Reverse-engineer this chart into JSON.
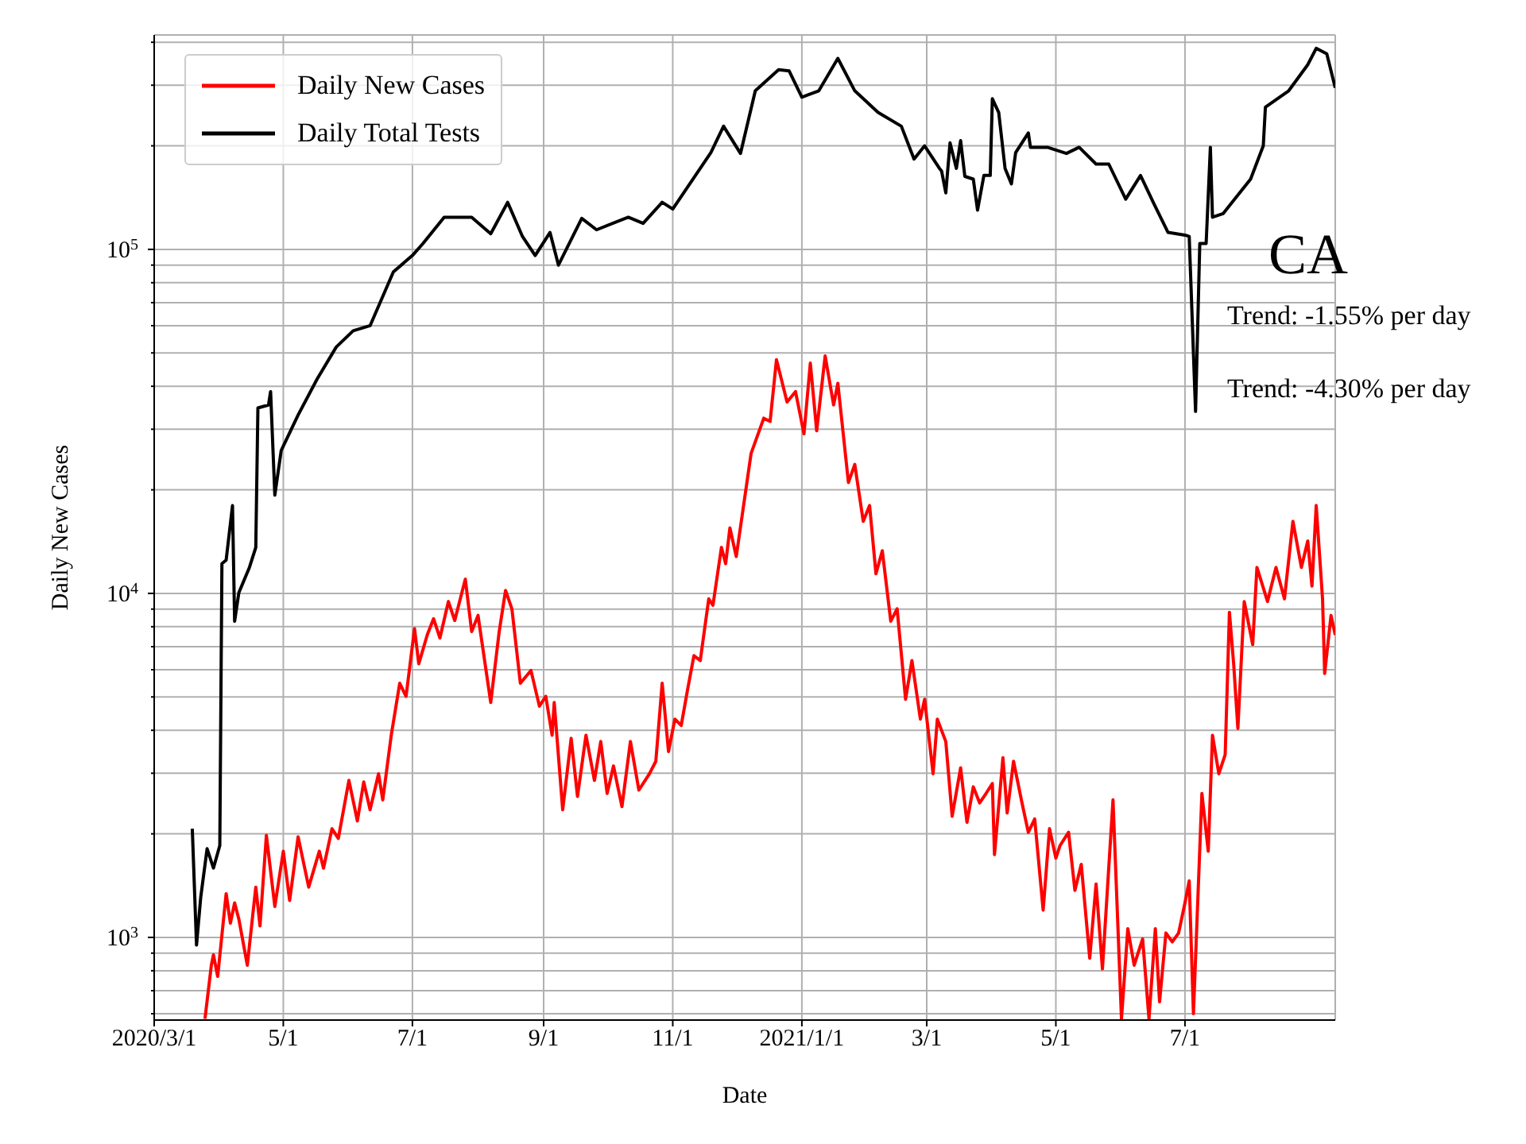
{
  "chart_data": {
    "type": "line",
    "xlabel": "Date",
    "ylabel": "Daily New Cases",
    "log": "y",
    "grid": true,
    "legend": "top left",
    "marker": "none",
    "line_style": "solid",
    "xlim": [
      "2020-03-01",
      "2021-09-10"
    ],
    "xticks": [
      {
        "value": "2020-03-01",
        "label": "2020/3/1"
      },
      {
        "value": "2020-05-01",
        "label": "5/1"
      },
      {
        "value": "2020-07-01",
        "label": "7/1"
      },
      {
        "value": "2020-09-01",
        "label": "9/1"
      },
      {
        "value": "2020-11-01",
        "label": "11/1"
      },
      {
        "value": "2021-01-01",
        "label": "2021/1/1"
      },
      {
        "value": "2021-03-01",
        "label": "3/1"
      },
      {
        "value": "2021-05-01",
        "label": "5/1"
      },
      {
        "value": "2021-07-01",
        "label": "7/1"
      }
    ],
    "ylim": [
      575,
      420000
    ],
    "yticks": [
      {
        "value": 600,
        "label": null
      },
      {
        "value": 700,
        "label": null
      },
      {
        "value": 800,
        "label": null
      },
      {
        "value": 900,
        "label": null
      },
      {
        "value": 1000,
        "label": "10$^{3}$"
      },
      {
        "value": 2000,
        "label": null
      },
      {
        "value": 3000,
        "label": null
      },
      {
        "value": 4000,
        "label": null
      },
      {
        "value": 5000,
        "label": null
      },
      {
        "value": 6000,
        "label": null
      },
      {
        "value": 7000,
        "label": null
      },
      {
        "value": 8000,
        "label": null
      },
      {
        "value": 9000,
        "label": null
      },
      {
        "value": 10000,
        "label": "10$^{4}$"
      },
      {
        "value": 20000,
        "label": null
      },
      {
        "value": 30000,
        "label": null
      },
      {
        "value": 40000,
        "label": null
      },
      {
        "value": 50000,
        "label": null
      },
      {
        "value": 60000,
        "label": null
      },
      {
        "value": 70000,
        "label": null
      },
      {
        "value": 80000,
        "label": null
      },
      {
        "value": 90000,
        "label": null
      },
      {
        "value": 100000,
        "label": "10$^{5}$"
      },
      {
        "value": 200000,
        "label": null
      },
      {
        "value": 300000,
        "label": null
      },
      {
        "value": 400000,
        "label": null
      }
    ],
    "annotations": [
      "CA",
      "Trend: -1.55% per day",
      "Trend: -4.30% per day"
    ],
    "series": [
      {
        "name": "Daily New Cases",
        "color": "#ff0000",
        "x": [
          "2020-03-25",
          "2020-03-28",
          "2020-03-29",
          "2020-03-31",
          "2020-04-04",
          "2020-04-06",
          "2020-04-08",
          "2020-04-10",
          "2020-04-14",
          "2020-04-18",
          "2020-04-20",
          "2020-04-23",
          "2020-04-27",
          "2020-05-01",
          "2020-05-04",
          "2020-05-08",
          "2020-05-13",
          "2020-05-18",
          "2020-05-20",
          "2020-05-24",
          "2020-05-27",
          "2020-06-01",
          "2020-06-05",
          "2020-06-08",
          "2020-06-11",
          "2020-06-15",
          "2020-06-17",
          "2020-06-21",
          "2020-06-25",
          "2020-06-28",
          "2020-07-02",
          "2020-07-04",
          "2020-07-08",
          "2020-07-11",
          "2020-07-14",
          "2020-07-18",
          "2020-07-21",
          "2020-07-26",
          "2020-07-29",
          "2020-08-01",
          "2020-08-07",
          "2020-08-11",
          "2020-08-14",
          "2020-08-17",
          "2020-08-21",
          "2020-08-26",
          "2020-08-30",
          "2020-09-02",
          "2020-09-05",
          "2020-09-06",
          "2020-09-10",
          "2020-09-14",
          "2020-09-17",
          "2020-09-21",
          "2020-09-25",
          "2020-09-28",
          "2020-10-01",
          "2020-10-04",
          "2020-10-08",
          "2020-10-12",
          "2020-10-16",
          "2020-10-21",
          "2020-10-24",
          "2020-10-27",
          "2020-10-30",
          "2020-11-02",
          "2020-11-05",
          "2020-11-08",
          "2020-11-11",
          "2020-11-14",
          "2020-11-18",
          "2020-11-20",
          "2020-11-24",
          "2020-11-26",
          "2020-11-28",
          "2020-12-01",
          "2020-12-08",
          "2020-12-14",
          "2020-12-17",
          "2020-12-20",
          "2020-12-25",
          "2020-12-29",
          "2021-01-02",
          "2021-01-05",
          "2021-01-08",
          "2021-01-12",
          "2021-01-16",
          "2021-01-18",
          "2021-01-23",
          "2021-01-26",
          "2021-01-30",
          "2021-02-02",
          "2021-02-05",
          "2021-02-08",
          "2021-02-12",
          "2021-02-15",
          "2021-02-19",
          "2021-02-22",
          "2021-02-26",
          "2021-02-28",
          "2021-03-04",
          "2021-03-06",
          "2021-03-10",
          "2021-03-13",
          "2021-03-17",
          "2021-03-20",
          "2021-03-23",
          "2021-03-26",
          "2021-03-29",
          "2021-04-01",
          "2021-04-02",
          "2021-04-06",
          "2021-04-08",
          "2021-04-11",
          "2021-04-15",
          "2021-04-18",
          "2021-04-21",
          "2021-04-25",
          "2021-04-28",
          "2021-05-01",
          "2021-05-03",
          "2021-05-07",
          "2021-05-10",
          "2021-05-13",
          "2021-05-17",
          "2021-05-20",
          "2021-05-23",
          "2021-05-28",
          "2021-06-01",
          "2021-06-04",
          "2021-06-07",
          "2021-06-11",
          "2021-06-14",
          "2021-06-17",
          "2021-06-19",
          "2021-06-22",
          "2021-06-25",
          "2021-06-28",
          "2021-07-01",
          "2021-07-03",
          "2021-07-05",
          "2021-07-09",
          "2021-07-12",
          "2021-07-14",
          "2021-07-17",
          "2021-07-20",
          "2021-07-22",
          "2021-07-24",
          "2021-07-26",
          "2021-07-29",
          "2021-08-02",
          "2021-08-04",
          "2021-08-09",
          "2021-08-13",
          "2021-08-17",
          "2021-08-21",
          "2021-08-25",
          "2021-08-28",
          "2021-08-30",
          "2021-09-01",
          "2021-09-04",
          "2021-09-05",
          "2021-09-08",
          "2021-09-10"
        ],
        "values": [
          580,
          830,
          890,
          770,
          1340,
          1100,
          1260,
          1130,
          830,
          1400,
          1080,
          1980,
          1230,
          1780,
          1280,
          1960,
          1400,
          1780,
          1590,
          2070,
          1940,
          2860,
          2180,
          2830,
          2350,
          2990,
          2510,
          3870,
          5480,
          5020,
          7900,
          6240,
          7570,
          8440,
          7420,
          9470,
          8340,
          11000,
          7740,
          8630,
          4820,
          7740,
          10200,
          9020,
          5480,
          5970,
          4700,
          5020,
          3870,
          4820,
          2350,
          3790,
          2570,
          3870,
          2860,
          3710,
          2620,
          3150,
          2400,
          3710,
          2680,
          2990,
          3250,
          5480,
          3470,
          4310,
          4130,
          5250,
          6590,
          6380,
          9640,
          9240,
          13600,
          12200,
          15500,
          12800,
          25500,
          32300,
          31600,
          47800,
          36000,
          38600,
          29100,
          46700,
          29700,
          49000,
          35300,
          40800,
          21000,
          23700,
          16200,
          18000,
          11400,
          13300,
          8300,
          9020,
          4920,
          6380,
          4310,
          4920,
          2990,
          4310,
          3710,
          2250,
          3110,
          2160,
          2740,
          2460,
          2620,
          2800,
          1740,
          3330,
          2300,
          3250,
          2460,
          2020,
          2210,
          1200,
          2070,
          1700,
          1850,
          2020,
          1370,
          1630,
          870,
          1430,
          810,
          2510,
          580,
          1060,
          830,
          990,
          580,
          1060,
          650,
          1030,
          970,
          1030,
          1260,
          1460,
          600,
          2620,
          1780,
          3870,
          2990,
          3400,
          8810,
          6240,
          4050,
          9470,
          7100,
          11900,
          9470,
          11900,
          9640,
          16200,
          11900,
          14200,
          10500,
          18000,
          9640,
          5850,
          8630,
          7570
        ]
      },
      {
        "name": "Daily Total Tests",
        "color": "#000000",
        "x": [
          "2020-03-19",
          "2020-03-21",
          "2020-03-23",
          "2020-03-26",
          "2020-03-29",
          "2020-04-01",
          "2020-04-02",
          "2020-04-04",
          "2020-04-07",
          "2020-04-08",
          "2020-04-10",
          "2020-04-15",
          "2020-04-18",
          "2020-04-19",
          "2020-04-24",
          "2020-04-25",
          "2020-04-27",
          "2020-04-30",
          "2020-05-08",
          "2020-05-17",
          "2020-05-26",
          "2020-06-03",
          "2020-06-11",
          "2020-06-22",
          "2020-07-01",
          "2020-07-06",
          "2020-07-16",
          "2020-07-29",
          "2020-08-07",
          "2020-08-15",
          "2020-08-22",
          "2020-08-28",
          "2020-09-04",
          "2020-09-08",
          "2020-09-19",
          "2020-09-26",
          "2020-10-11",
          "2020-10-18",
          "2020-10-27",
          "2020-11-01",
          "2020-11-19",
          "2020-11-25",
          "2020-12-03",
          "2020-12-10",
          "2020-12-21",
          "2020-12-26",
          "2021-01-01",
          "2021-01-09",
          "2021-01-18",
          "2021-01-26",
          "2021-02-06",
          "2021-02-17",
          "2021-02-23",
          "2021-02-28",
          "2021-03-07",
          "2021-03-08",
          "2021-03-10",
          "2021-03-12",
          "2021-03-15",
          "2021-03-17",
          "2021-03-19",
          "2021-03-23",
          "2021-03-25",
          "2021-03-28",
          "2021-03-31",
          "2021-04-01",
          "2021-04-04",
          "2021-04-07",
          "2021-04-10",
          "2021-04-12",
          "2021-04-18",
          "2021-04-19",
          "2021-04-27",
          "2021-05-06",
          "2021-05-12",
          "2021-05-20",
          "2021-05-26",
          "2021-06-03",
          "2021-06-10",
          "2021-06-16",
          "2021-06-23",
          "2021-07-01",
          "2021-07-03",
          "2021-07-06",
          "2021-07-08",
          "2021-07-11",
          "2021-07-13",
          "2021-07-14",
          "2021-07-19",
          "2021-08-01",
          "2021-08-07",
          "2021-08-08",
          "2021-08-19",
          "2021-08-28",
          "2021-09-01",
          "2021-09-06",
          "2021-09-10"
        ],
        "values": [
          2070,
          950,
          1310,
          1810,
          1590,
          1850,
          12200,
          12500,
          18000,
          8300,
          10050,
          11900,
          13600,
          34600,
          35300,
          38600,
          19300,
          26000,
          33000,
          42000,
          52000,
          58000,
          60000,
          86000,
          96000,
          104000,
          124000,
          124000,
          111000,
          137000,
          109000,
          96000,
          112000,
          90000,
          123000,
          114000,
          124000,
          119000,
          137000,
          131000,
          191000,
          228000,
          190000,
          289000,
          333000,
          330000,
          277000,
          289000,
          359000,
          289000,
          250000,
          228000,
          183000,
          200000,
          172000,
          169000,
          146000,
          204000,
          172000,
          207000,
          163000,
          160000,
          130000,
          164000,
          164000,
          274000,
          250000,
          172000,
          155000,
          191000,
          218000,
          198000,
          198000,
          190000,
          198000,
          177000,
          177000,
          140000,
          164000,
          137000,
          112000,
          110000,
          109000,
          33800,
          104000,
          104000,
          198000,
          124000,
          127000,
          160000,
          200000,
          259000,
          289000,
          344000,
          384000,
          370000,
          295000
        ]
      }
    ]
  }
}
